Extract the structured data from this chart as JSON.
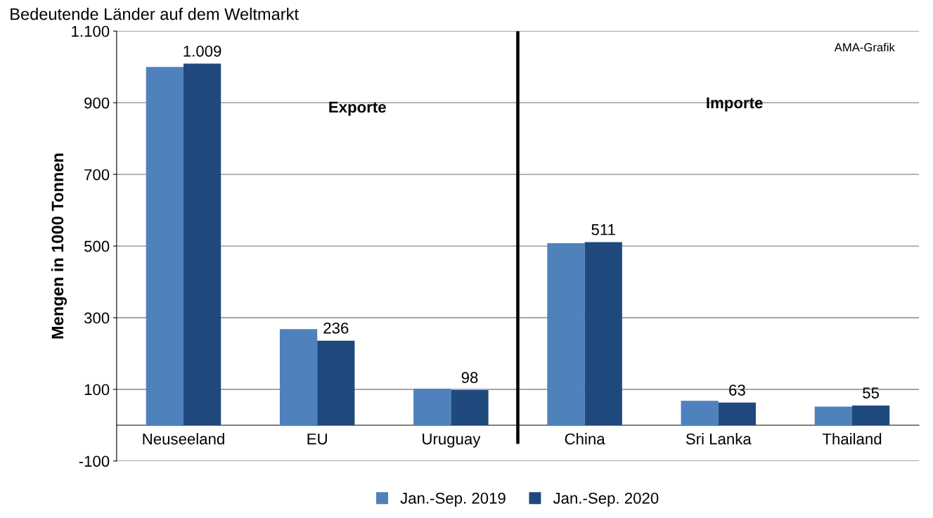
{
  "chart_data": {
    "type": "bar",
    "title": "Bedeutende Länder auf dem Weltmarkt",
    "ylabel": "Mengen in 1000 Tonnen",
    "categories": [
      "Neuseeland",
      "EU",
      "Uruguay",
      "China",
      "Sri Lanka",
      "Thailand"
    ],
    "series": [
      {
        "name": "Jan.-Sep. 2019",
        "color": "#4f81bd",
        "values": [
          1000,
          268,
          102,
          508,
          68,
          52
        ]
      },
      {
        "name": "Jan.-Sep. 2020",
        "color": "#1f497d",
        "values": [
          1009,
          236,
          98,
          511,
          63,
          55
        ],
        "value_labels": [
          "1.009",
          "236",
          "98",
          "511",
          "63",
          "55"
        ]
      }
    ],
    "ylim": [
      -100,
      1100
    ],
    "yticks": [
      -100,
      100,
      300,
      500,
      700,
      900,
      {
        "value": 1100,
        "label": "1.100"
      }
    ],
    "grid": "y",
    "legend": "bottom",
    "annotations": [
      "Exporte",
      "Importe",
      "AMA-Grafik"
    ]
  }
}
